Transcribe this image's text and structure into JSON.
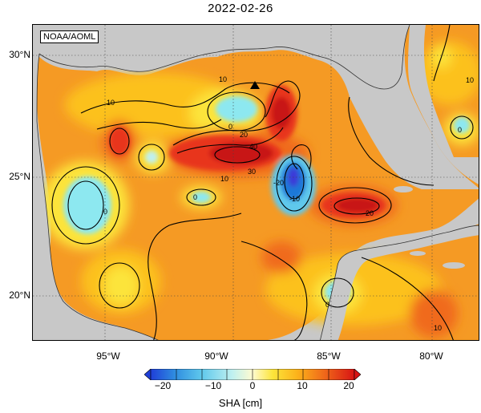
{
  "title": "2022-02-26",
  "credit": "NOAA/AOML",
  "lat_labels": [
    "30°N",
    "25°N",
    "20°N"
  ],
  "lon_labels": [
    "95°W",
    "90°W",
    "85°W",
    "80°W"
  ],
  "colorbar": {
    "label": "SHA [cm]",
    "ticks": [
      "−20",
      "−10",
      "0",
      "10",
      "20"
    ],
    "range": [
      -20,
      20
    ]
  },
  "contour_labels": [
    "10",
    "0",
    "20",
    "40",
    "30",
    "-20",
    "-10",
    "0",
    "20",
    "10",
    "0",
    "10",
    "0",
    "10",
    "10",
    "0"
  ],
  "colors": {
    "land": "#c8c8c8",
    "water_base": "#f59a24",
    "warm": "#e81c1c",
    "cold": "#1f78d8"
  }
}
